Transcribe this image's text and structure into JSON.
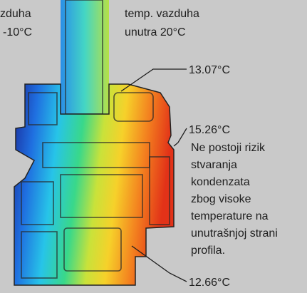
{
  "labels": {
    "outside": [
      "zduha",
      "-10°C"
    ],
    "inside": [
      "temp. vazduha",
      "unutra 20°C"
    ],
    "top_temp": "13.07°C",
    "middle_temp": "15.26°C",
    "note": [
      "Ne postoji rizik",
      "stvaranja",
      "kondenzata",
      "zbog visoke",
      "temperature na",
      "unutrašnjoj strani",
      "profila."
    ],
    "bottom_temp": "12.66°C"
  }
}
